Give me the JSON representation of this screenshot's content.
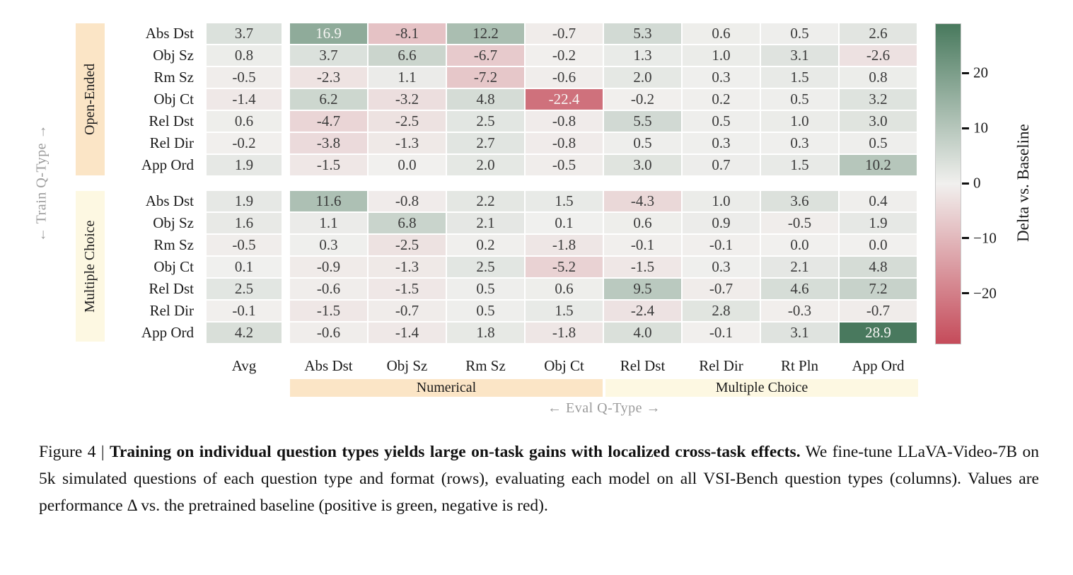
{
  "figure": {
    "train_axis_label": "← Train Q-Type →",
    "eval_axis_label": "← Eval Q-Type →"
  },
  "chart_data": {
    "type": "heatmap",
    "columns": [
      "Avg",
      "Abs Dst",
      "Obj Sz",
      "Rm Sz",
      "Obj Ct",
      "Rel Dst",
      "Rel Dir",
      "Rt Pln",
      "App Ord"
    ],
    "column_groups": [
      {
        "label": "Numerical",
        "columns": [
          "Abs Dst",
          "Obj Sz",
          "Rm Sz",
          "Obj Ct"
        ],
        "color": "#fbe5c6"
      },
      {
        "label": "Multiple Choice",
        "columns": [
          "Rel Dst",
          "Rel Dir",
          "Rt Pln",
          "App Ord"
        ],
        "color": "#fdf8e2"
      }
    ],
    "row_groups": [
      {
        "label": "Open-Ended",
        "color": "#fbe5c6",
        "rows": [
          "Abs Dst",
          "Obj Sz",
          "Rm Sz",
          "Obj Ct",
          "Rel Dst",
          "Rel Dir",
          "App Ord"
        ],
        "values": [
          [
            3.7,
            16.9,
            -8.1,
            12.2,
            -0.7,
            5.3,
            0.6,
            0.5,
            2.6
          ],
          [
            0.8,
            3.7,
            6.6,
            -6.7,
            -0.2,
            1.3,
            1.0,
            3.1,
            -2.6
          ],
          [
            -0.5,
            -2.3,
            1.1,
            -7.2,
            -0.6,
            2.0,
            0.3,
            1.5,
            0.8
          ],
          [
            -1.4,
            6.2,
            -3.2,
            4.8,
            -22.4,
            -0.2,
            0.2,
            0.5,
            3.2
          ],
          [
            0.6,
            -4.7,
            -2.5,
            2.5,
            -0.8,
            5.5,
            0.5,
            1.0,
            3.0
          ],
          [
            -0.2,
            -3.8,
            -1.3,
            2.7,
            -0.8,
            0.5,
            0.3,
            0.3,
            0.5
          ],
          [
            1.9,
            -1.5,
            0.0,
            2.0,
            -0.5,
            3.0,
            0.7,
            1.5,
            10.2
          ]
        ]
      },
      {
        "label": "Multiple Choice",
        "color": "#fdf8e2",
        "rows": [
          "Abs Dst",
          "Obj Sz",
          "Rm Sz",
          "Obj Ct",
          "Rel Dst",
          "Rel Dir",
          "App Ord"
        ],
        "values": [
          [
            1.9,
            11.6,
            -0.8,
            2.2,
            1.5,
            -4.3,
            1.0,
            3.6,
            0.4
          ],
          [
            1.6,
            1.1,
            6.8,
            2.1,
            0.1,
            0.6,
            0.9,
            -0.5,
            1.9
          ],
          [
            -0.5,
            0.3,
            -2.5,
            0.2,
            -1.8,
            -0.1,
            -0.1,
            0.0,
            0.0
          ],
          [
            0.1,
            -0.9,
            -1.3,
            2.5,
            -5.2,
            -1.5,
            0.3,
            2.1,
            4.8
          ],
          [
            2.5,
            -0.6,
            -1.5,
            0.5,
            0.6,
            9.5,
            -0.7,
            4.6,
            7.2
          ],
          [
            -0.1,
            -1.5,
            -0.7,
            0.5,
            1.5,
            -2.4,
            2.8,
            -0.3,
            -0.7
          ],
          [
            4.2,
            -0.6,
            -1.4,
            1.8,
            -1.8,
            4.0,
            -0.1,
            3.1,
            28.9
          ]
        ]
      }
    ],
    "colorbar": {
      "label": "Delta vs. Baseline",
      "tick_values": [
        20,
        10,
        0,
        -10,
        -20
      ],
      "vmin": -29,
      "vmax": 29,
      "color_max": "#48795d",
      "color_mid": "#f1f0ee",
      "color_min": "#c54b5a"
    },
    "value_text": {
      "dark": "#3a3a3a",
      "light": "#f7f6f4",
      "light_threshold": 15
    },
    "xlabel": "← Eval Q-Type →",
    "ylabel": "← Train Q-Type →"
  },
  "caption": {
    "prefix": "Figure 4 | ",
    "bold": "Training on individual question types yields large on-task gains with localized cross-task effects.",
    "body": " We fine-tune LLaVA-Video-7B on 5k simulated questions of each question type and format (rows), evaluating each model on all VSI-Bench question types (columns).  Values are performance Δ vs. the pretrained baseline (positive is green, negative is red)."
  }
}
